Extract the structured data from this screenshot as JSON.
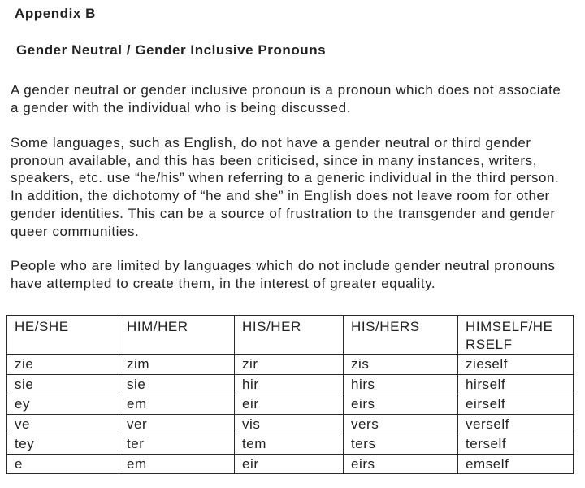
{
  "page": {
    "appendix_title": "Appendix B",
    "doc_title": "Gender Neutral / Gender Inclusive Pronouns",
    "paragraphs": [
      {
        "lines": [
          "A gender neutral or gender inclusive pronoun is a pronoun which does not associate",
          "a gender with the individual who is being discussed."
        ]
      },
      {
        "lines": [
          "Some languages, such as English, do not have a gender neutral or third gender",
          "pronoun available, and this has been criticised, since in many instances, writers,",
          "speakers, etc. use “he/his” when referring to a generic individual in the third person.",
          "In addition, the dichotomy of “he and she” in English does not leave room for other",
          "gender identities. This can be a source of frustration to the transgender and gender",
          "queer communities."
        ]
      },
      {
        "lines": [
          "People who are limited by languages which do not include gender neutral pronouns",
          "have attempted to create them, in the interest of greater equality."
        ]
      }
    ],
    "table": {
      "headers": [
        "HE/SHE",
        "HIM/HER",
        "HIS/HER",
        "HIS/HERS",
        "HIMSELF/HE\nRSELF"
      ],
      "rows": [
        [
          "zie",
          "zim",
          "zir",
          "zis",
          "zieself"
        ],
        [
          "sie",
          "sie",
          "hir",
          "hirs",
          "hirself"
        ],
        [
          "ey",
          "em",
          "eir",
          "eirs",
          "eirself"
        ],
        [
          "ve",
          "ver",
          "vis",
          "vers",
          "verself"
        ],
        [
          "tey",
          "ter",
          "tem",
          "ters",
          "terself"
        ],
        [
          "e",
          "em",
          "eir",
          "eirs",
          "emself"
        ]
      ]
    }
  },
  "colors": {
    "background": "#ffffff",
    "text": "#222222",
    "table_border": "#2a2a2a"
  }
}
